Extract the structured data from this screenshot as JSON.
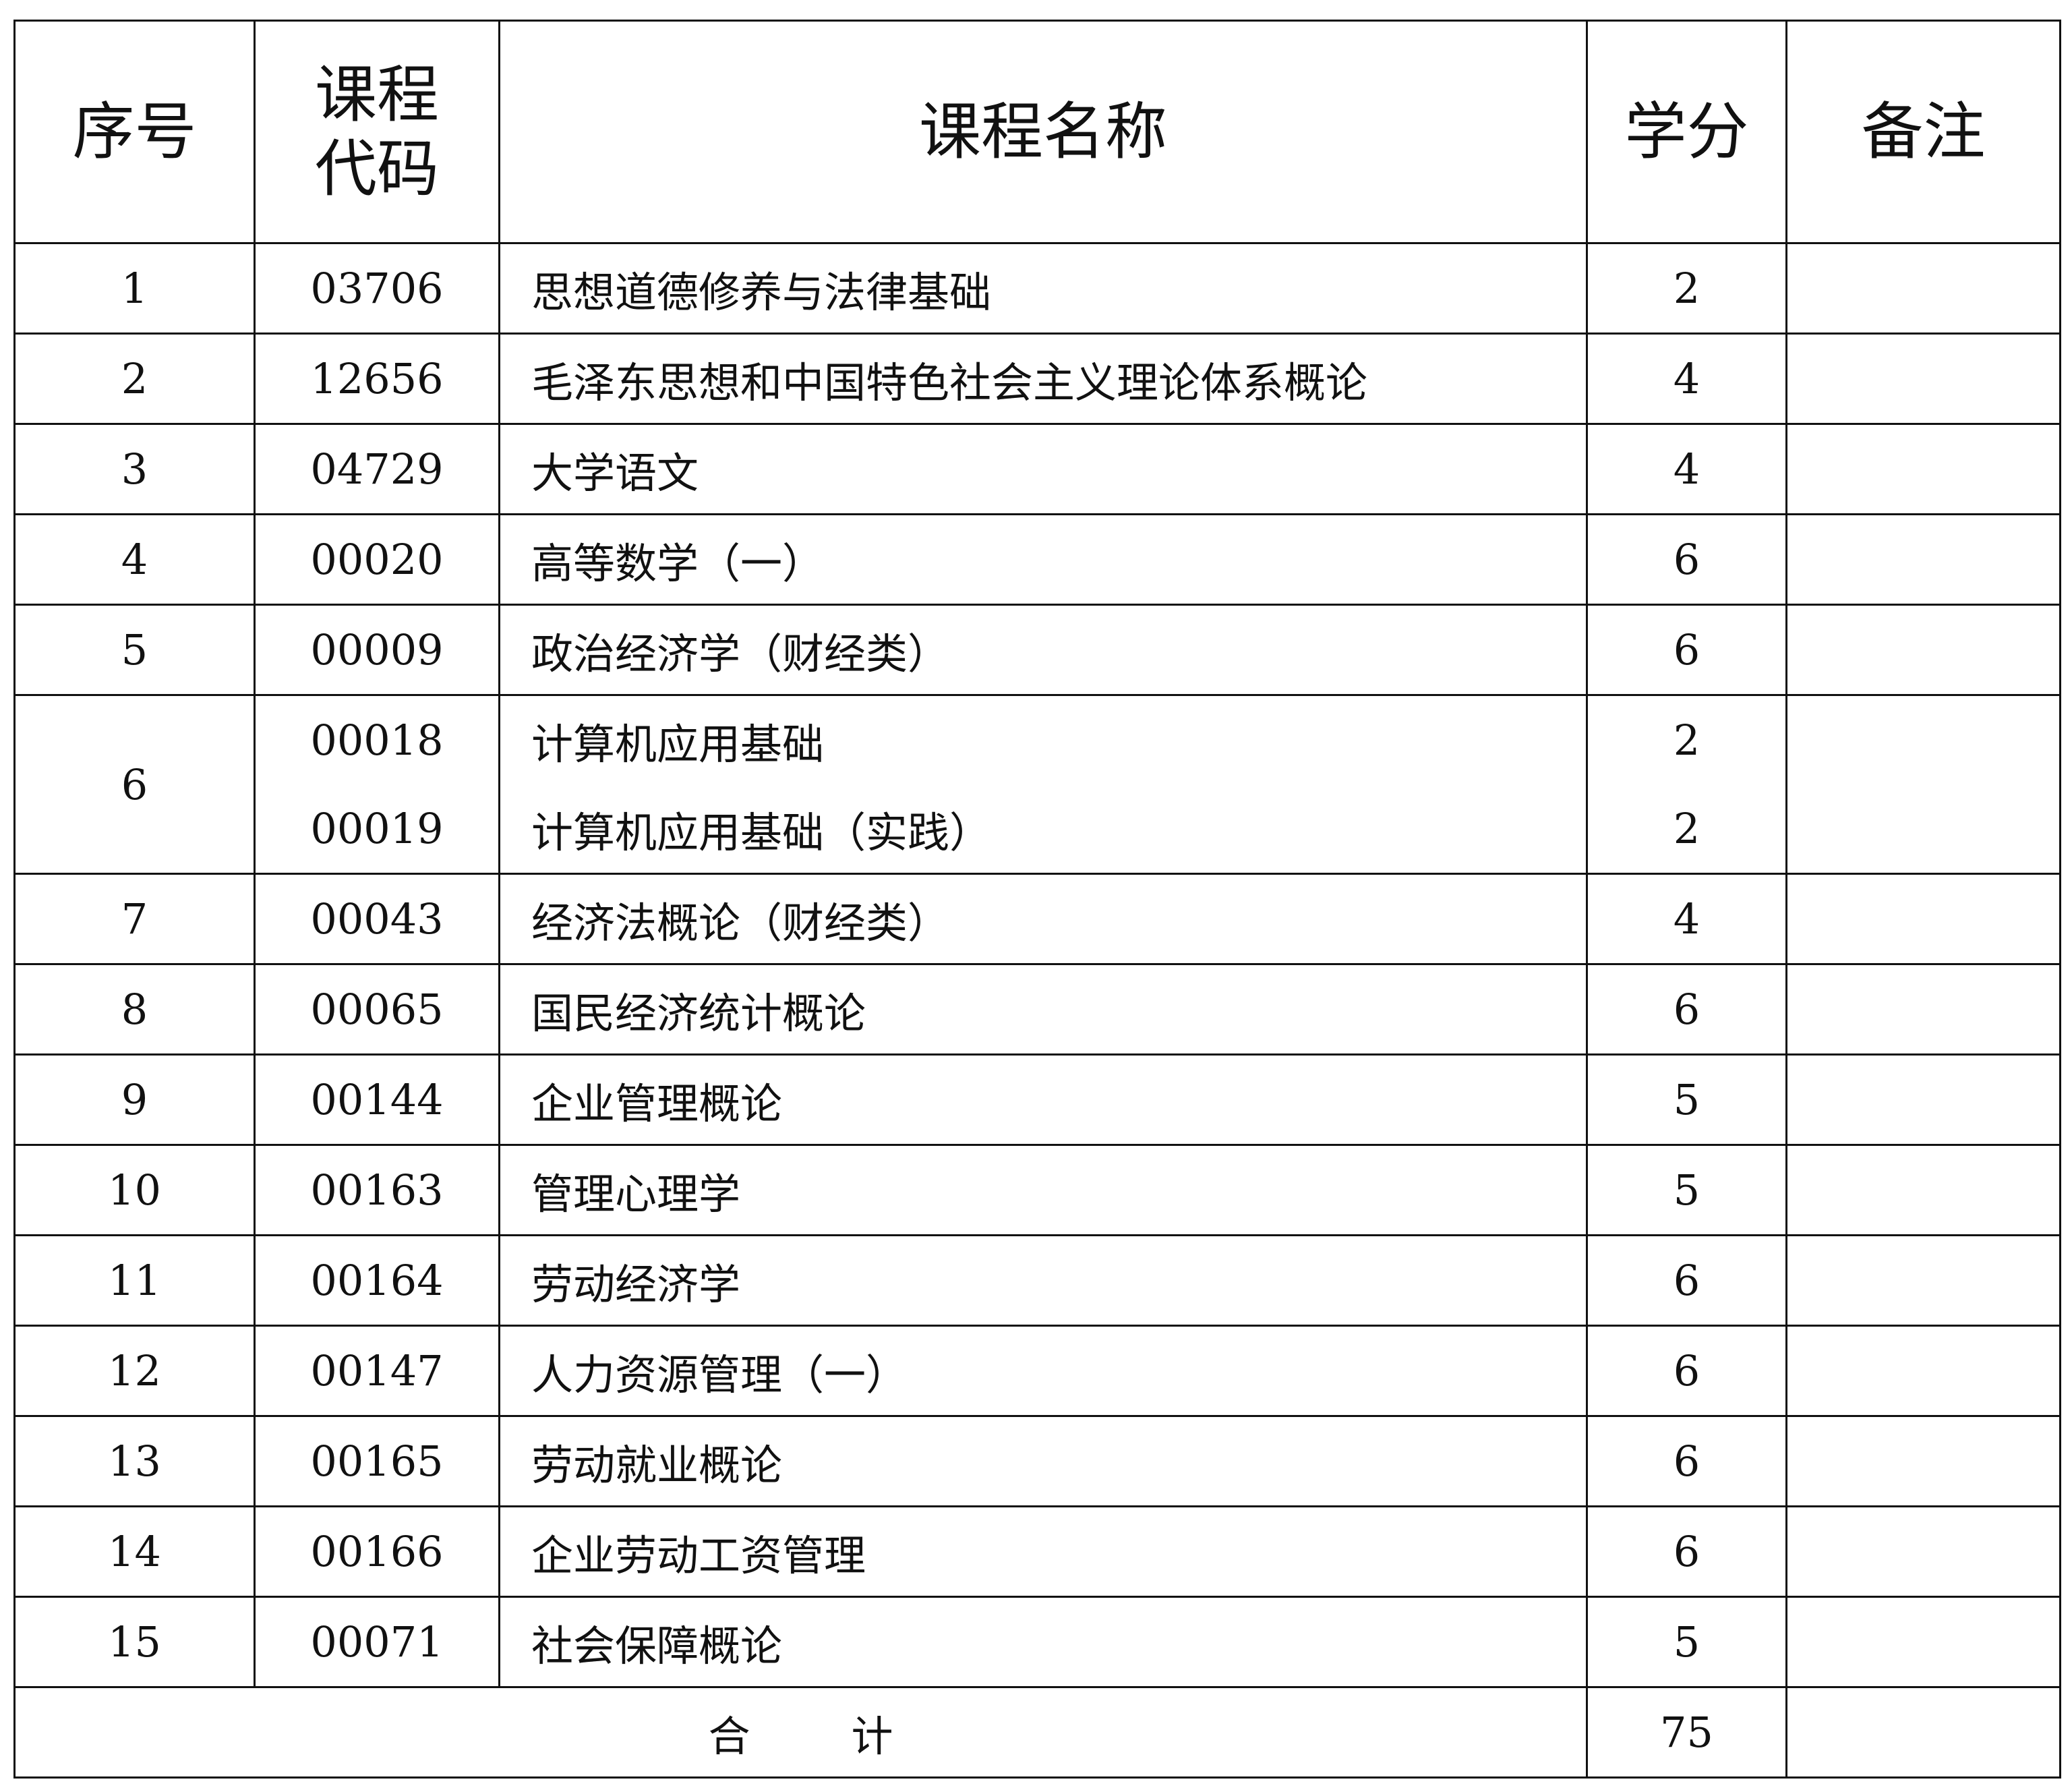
{
  "headers": {
    "seq": "序号",
    "code_line1": "课程",
    "code_line2": "代码",
    "name": "课程名称",
    "credits": "学分",
    "remark": "备注"
  },
  "rows": [
    {
      "seq": "1",
      "code": "03706",
      "name": "思想道德修养与法律基础",
      "credits": "2",
      "remark": ""
    },
    {
      "seq": "2",
      "code": "12656",
      "name": "毛泽东思想和中国特色社会主义理论体系概论",
      "credits": "4",
      "remark": ""
    },
    {
      "seq": "3",
      "code": "04729",
      "name": "大学语文",
      "credits": "4",
      "remark": ""
    },
    {
      "seq": "4",
      "code": "00020",
      "name": "高等数学（一）",
      "credits": "6",
      "remark": ""
    },
    {
      "seq": "5",
      "code": "00009",
      "name": "政治经济学（财经类）",
      "credits": "6",
      "remark": ""
    },
    {
      "seq": "6",
      "code": "00018",
      "name": "计算机应用基础",
      "credits": "2",
      "remark": "",
      "code2": "00019",
      "name2": "计算机应用基础（实践）",
      "credits2": "2"
    },
    {
      "seq": "7",
      "code": "00043",
      "name": "经济法概论（财经类）",
      "credits": "4",
      "remark": ""
    },
    {
      "seq": "8",
      "code": "00065",
      "name": "国民经济统计概论",
      "credits": "6",
      "remark": ""
    },
    {
      "seq": "9",
      "code": "00144",
      "name": "企业管理概论",
      "credits": "5",
      "remark": ""
    },
    {
      "seq": "10",
      "code": "00163",
      "name": "管理心理学",
      "credits": "5",
      "remark": ""
    },
    {
      "seq": "11",
      "code": "00164",
      "name": "劳动经济学",
      "credits": "6",
      "remark": ""
    },
    {
      "seq": "12",
      "code": "00147",
      "name": "人力资源管理（一）",
      "credits": "6",
      "remark": ""
    },
    {
      "seq": "13",
      "code": "00165",
      "name": "劳动就业概论",
      "credits": "6",
      "remark": ""
    },
    {
      "seq": "14",
      "code": "00166",
      "name": "企业劳动工资管理",
      "credits": "6",
      "remark": ""
    },
    {
      "seq": "15",
      "code": "00071",
      "name": "社会保障概论",
      "credits": "5",
      "remark": ""
    }
  ],
  "total": {
    "label_1": "合",
    "label_2": "计",
    "credits": "75"
  }
}
